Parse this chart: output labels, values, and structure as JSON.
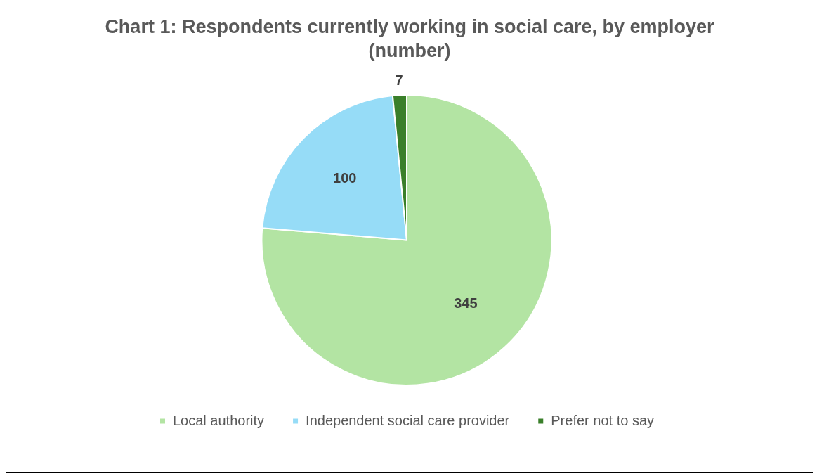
{
  "chart_data": {
    "type": "pie",
    "title": "Chart 1: Respondents currently working in social care, by employer (number)",
    "categories": [
      "Local authority",
      "Independent social care provider",
      "Prefer not to say"
    ],
    "values": [
      345,
      100,
      7
    ],
    "colors": [
      "#b3e4a3",
      "#96dcf7",
      "#3a7f2a"
    ],
    "data_labels": true,
    "legend": "bottom"
  }
}
